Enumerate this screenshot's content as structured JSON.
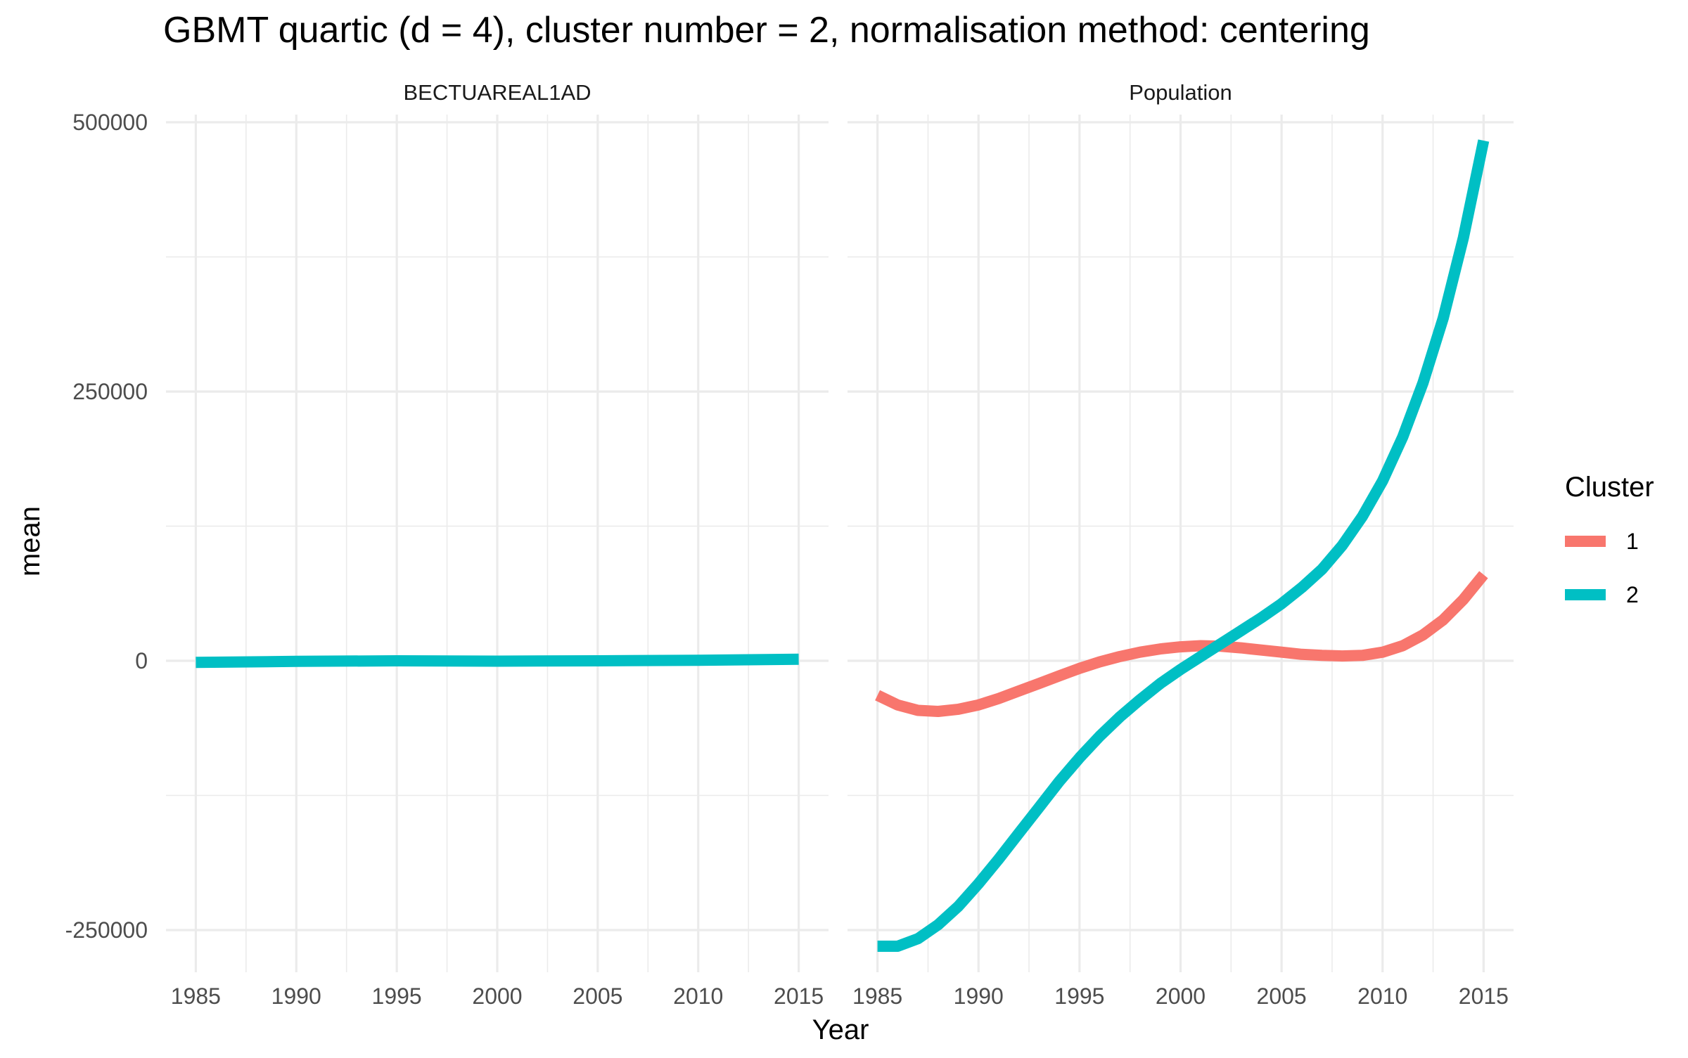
{
  "chart_data": {
    "type": "line",
    "title": "GBMT quartic (d = 4), cluster number = 2, normalisation method: centering",
    "xlabel": "Year",
    "ylabel": "mean",
    "xlim": [
      1985,
      2015
    ],
    "ylim": [
      -265000,
      483000
    ],
    "x_ticks": [
      1985,
      1990,
      1995,
      2000,
      2005,
      2010,
      2015
    ],
    "x_tick_labels": [
      "1985",
      "1990",
      "1995",
      "2000",
      "2005",
      "2010",
      "2015"
    ],
    "y_ticks": [
      -250000,
      0,
      250000,
      500000
    ],
    "y_tick_labels": [
      "-250000",
      "0",
      "250000",
      "500000"
    ],
    "grid": true,
    "legend": {
      "title": "Cluster",
      "position": "right",
      "entries": [
        {
          "label": "1",
          "color": "#F8766D"
        },
        {
          "label": "2",
          "color": "#00BFC4"
        }
      ]
    },
    "panels": [
      {
        "label": "BECTUAREAL1AD",
        "series": [
          {
            "name": "2",
            "color": "#00BFC4",
            "x": [
              1985,
              1990,
              1995,
              2000,
              2005,
              2010,
              2015
            ],
            "y": [
              -1500,
              -500,
              0,
              -300,
              0,
              500,
              1500
            ]
          }
        ]
      },
      {
        "label": "Population",
        "series": [
          {
            "name": "1",
            "color": "#F8766D",
            "x": [
              1985,
              1986,
              1987,
              1988,
              1989,
              1990,
              1991,
              1992,
              1993,
              1994,
              1995,
              1996,
              1997,
              1998,
              1999,
              2000,
              2001,
              2002,
              2003,
              2004,
              2005,
              2006,
              2007,
              2008,
              2009,
              2010,
              2011,
              2012,
              2013,
              2014,
              2015
            ],
            "y": [
              -32000,
              -41000,
              -46000,
              -47000,
              -45000,
              -41000,
              -35000,
              -28000,
              -21000,
              -14000,
              -7000,
              -1000,
              4000,
              8000,
              11000,
              13000,
              14000,
              13500,
              12000,
              10000,
              8000,
              6000,
              5000,
              4500,
              5000,
              8000,
              14000,
              24000,
              38000,
              57000,
              80000
            ]
          },
          {
            "name": "2",
            "color": "#00BFC4",
            "x": [
              1985,
              1986,
              1987,
              1988,
              1989,
              1990,
              1991,
              1992,
              1993,
              1994,
              1995,
              1996,
              1997,
              1998,
              1999,
              2000,
              2001,
              2002,
              2003,
              2004,
              2005,
              2006,
              2007,
              2008,
              2009,
              2010,
              2011,
              2012,
              2013,
              2014,
              2015
            ],
            "y": [
              -265000,
              -265000,
              -258000,
              -245000,
              -228000,
              -207000,
              -184000,
              -160000,
              -136000,
              -112000,
              -90000,
              -70000,
              -52000,
              -36000,
              -21000,
              -8000,
              4000,
              16000,
              28000,
              40000,
              53000,
              68000,
              85000,
              107000,
              134000,
              167000,
              208000,
              258000,
              318000,
              393000,
              483000
            ]
          }
        ]
      }
    ]
  }
}
